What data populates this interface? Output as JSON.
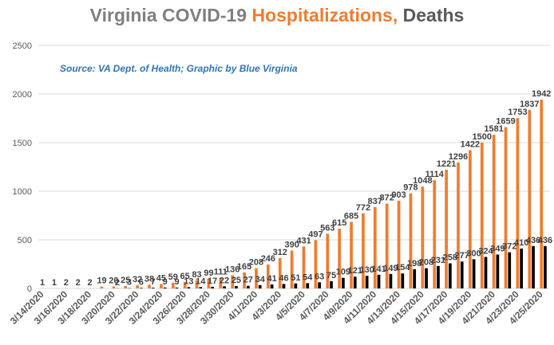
{
  "title": {
    "part1": "Virginia COVID-19 ",
    "part2": "Hospitalizations,",
    "part3": " Deaths"
  },
  "source": "Source: VA Dept. of Health; Graphic by Blue Virginia",
  "colors": {
    "hospitalizations": "#ed7d31",
    "deaths": "#000000",
    "grid": "#d9d9d9",
    "axis_text": "#595959",
    "label_text": "#404040",
    "title_gray": "#7f7f7f",
    "title_orange": "#ed7d31",
    "title_dark": "#595959",
    "source_blue": "#2e75b6"
  },
  "chart_data": {
    "type": "bar",
    "ylim": [
      0,
      2500
    ],
    "yticks": [
      0,
      500,
      1000,
      1500,
      2000,
      2500
    ],
    "grid": true,
    "legend": "none",
    "categories": [
      "3/14/2020",
      "3/15/2020",
      "3/16/2020",
      "3/17/2020",
      "3/18/2020",
      "3/19/2020",
      "3/20/2020",
      "3/21/2020",
      "3/22/2020",
      "3/23/2020",
      "3/24/2020",
      "3/25/2020",
      "3/26/2020",
      "3/27/2020",
      "3/28/2020",
      "3/29/2020",
      "3/30/2020",
      "3/31/2020",
      "4/1/2020",
      "4/2/2020",
      "4/3/2020",
      "4/4/2020",
      "4/5/2020",
      "4/6/2020",
      "4/7/2020",
      "4/8/2020",
      "4/9/2020",
      "4/10/2020",
      "4/11/2020",
      "4/12/2020",
      "4/13/2020",
      "4/14/2020",
      "4/15/2020",
      "4/16/2020",
      "4/17/2020",
      "4/18/2020",
      "4/19/2020",
      "4/20/2020",
      "4/21/2020",
      "4/22/2020",
      "4/23/2020",
      "4/24/2020",
      "4/25/2020"
    ],
    "xtick_labels": [
      "3/14/2020",
      "",
      "3/16/2020",
      "",
      "3/18/2020",
      "",
      "3/20/2020",
      "",
      "3/22/2020",
      "",
      "3/24/2020",
      "",
      "3/26/2020",
      "",
      "3/28/2020",
      "",
      "3/30/2020",
      "",
      "4/1/2020",
      "",
      "4/3/2020",
      "",
      "4/5/2020",
      "",
      "4/7/2020",
      "",
      "4/9/2020",
      "",
      "4/11/2020",
      "",
      "4/13/2020",
      "",
      "4/15/2020",
      "",
      "4/17/2020",
      "",
      "4/19/2020",
      "",
      "4/21/2020",
      "",
      "4/23/2020",
      "",
      "4/25/2020"
    ],
    "series": [
      {
        "key": "hospitalizations",
        "values": [
          1,
          1,
          2,
          2,
          2,
          19,
          20,
          25,
          32,
          38,
          45,
          59,
          65,
          83,
          99,
          111,
          136,
          165,
          208,
          246,
          312,
          390,
          431,
          497,
          563,
          615,
          685,
          772,
          837,
          872,
          903,
          978,
          1048,
          1114,
          1221,
          1296,
          1422,
          1500,
          1581,
          1659,
          1753,
          1837,
          1942
        ],
        "labels": [
          "1",
          "1",
          "2",
          "2",
          "2",
          "19",
          "20",
          "25",
          "32",
          "38",
          "45",
          "59",
          "65",
          "83",
          "99",
          "111",
          "136",
          "165",
          "208",
          "246",
          "312",
          "390",
          "431",
          "497",
          "563",
          "615",
          "685",
          "772",
          "837",
          "872",
          "903",
          "978",
          "1048",
          "1114",
          "1221",
          "1296",
          "1422",
          "1500",
          "1581",
          "1659",
          "1753",
          "1837",
          "1942"
        ]
      },
      {
        "key": "deaths",
        "values": [
          0,
          0,
          0,
          0,
          0,
          0,
          2,
          3,
          6,
          7,
          9,
          9,
          13,
          14,
          17,
          22,
          25,
          27,
          34,
          41,
          46,
          51,
          54,
          63,
          75,
          109,
          121,
          130,
          141,
          149,
          154,
          198,
          208,
          231,
          258,
          277,
          300,
          324,
          349,
          372,
          410,
          436,
          436
        ],
        "labels": [
          "",
          "",
          "",
          "",
          "",
          "",
          "2",
          "3",
          "6",
          "7",
          "9",
          "9",
          "13",
          "14",
          "17",
          "22",
          "25",
          "27",
          "34",
          "41",
          "46",
          "51",
          "54",
          "63",
          "75",
          "109",
          "121",
          "130",
          "141",
          "149",
          "154",
          "198",
          "208",
          "231",
          "258",
          "277",
          "300",
          "324",
          "349",
          "372",
          "410",
          "436",
          "436"
        ]
      }
    ]
  }
}
